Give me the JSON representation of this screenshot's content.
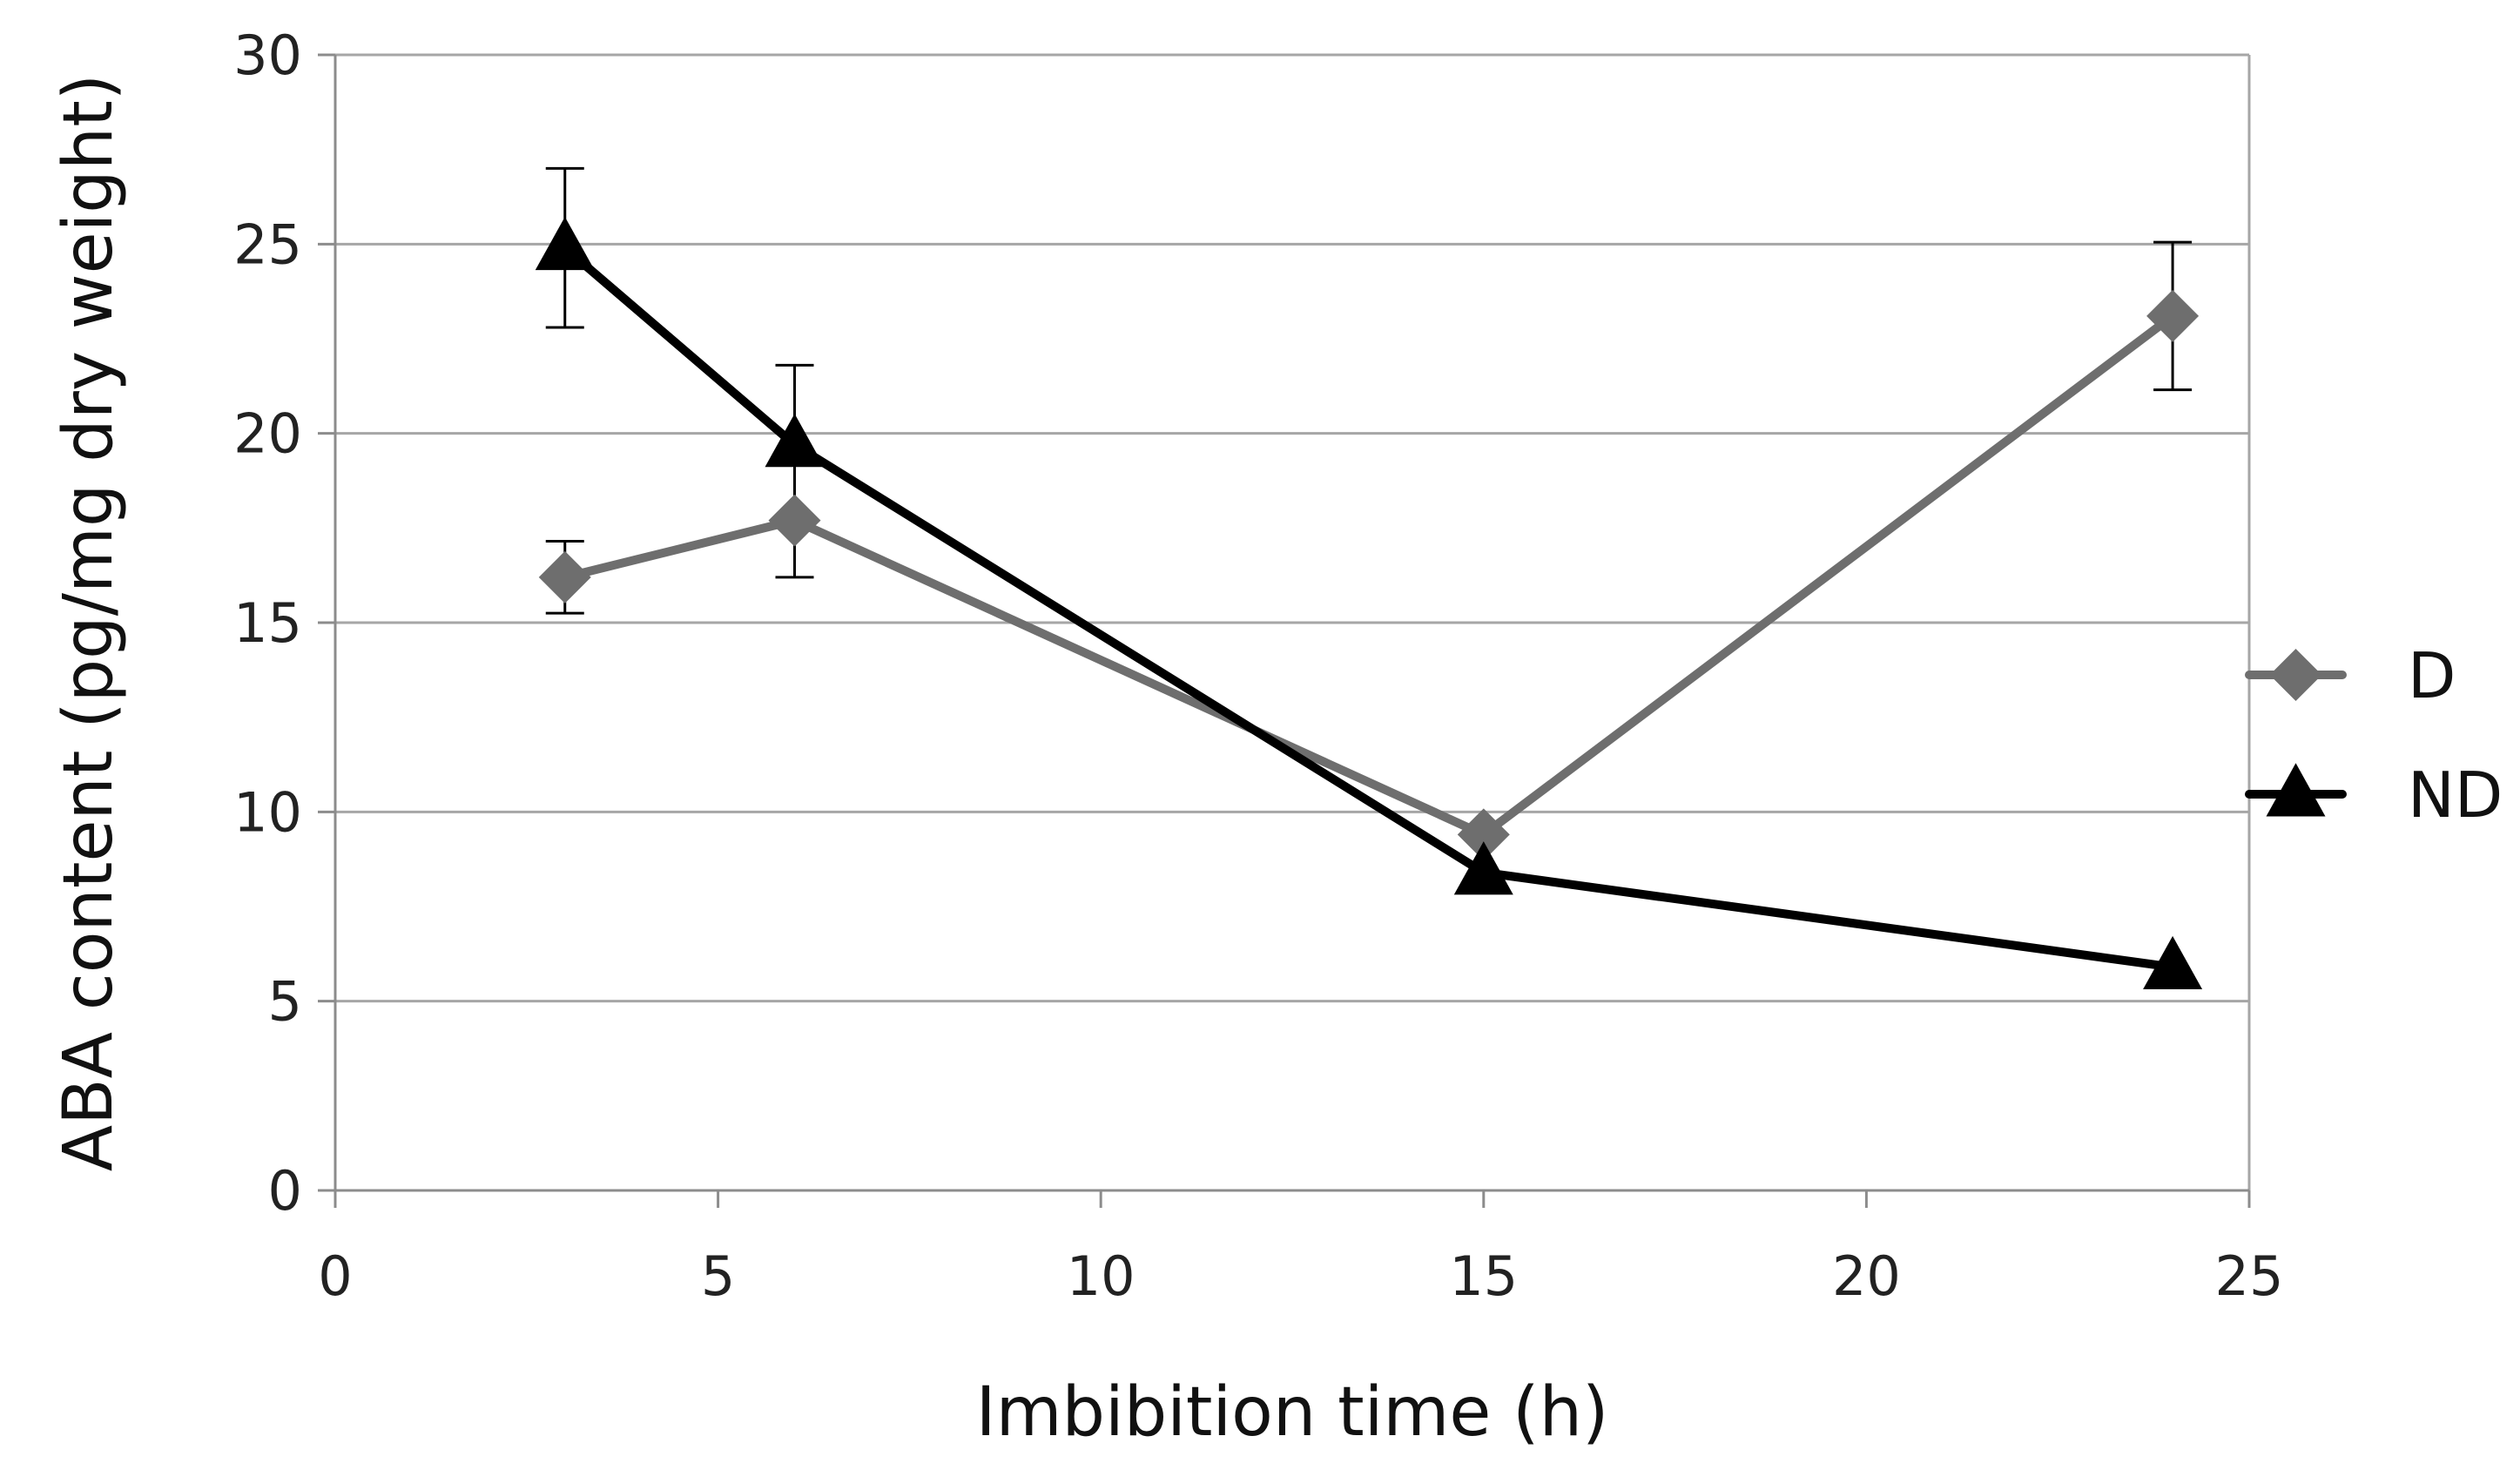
{
  "chart_data": {
    "type": "line",
    "title": "",
    "xlabel": "Imbibition time (h)",
    "ylabel": "ABA content (pg/mg dry weight)",
    "xlim": [
      0,
      25
    ],
    "ylim": [
      0,
      30
    ],
    "xticks": [
      0,
      5,
      10,
      15,
      20,
      25
    ],
    "yticks": [
      0,
      5,
      10,
      15,
      20,
      25,
      30
    ],
    "grid": "horizontal",
    "legend_position": "right",
    "series": [
      {
        "name": "D",
        "marker": "diamond",
        "color": "#6e6e6e",
        "x": [
          3,
          6,
          15,
          24
        ],
        "y": [
          16.2,
          17.7,
          9.4,
          23.1
        ],
        "error": [
          0.95,
          1.5,
          null,
          1.95
        ]
      },
      {
        "name": "ND",
        "marker": "triangle",
        "color": "#000000",
        "x": [
          3,
          6,
          15,
          24
        ],
        "y": [
          24.9,
          19.7,
          8.4,
          5.9
        ],
        "error": [
          2.1,
          2.1,
          null,
          null
        ]
      }
    ]
  }
}
